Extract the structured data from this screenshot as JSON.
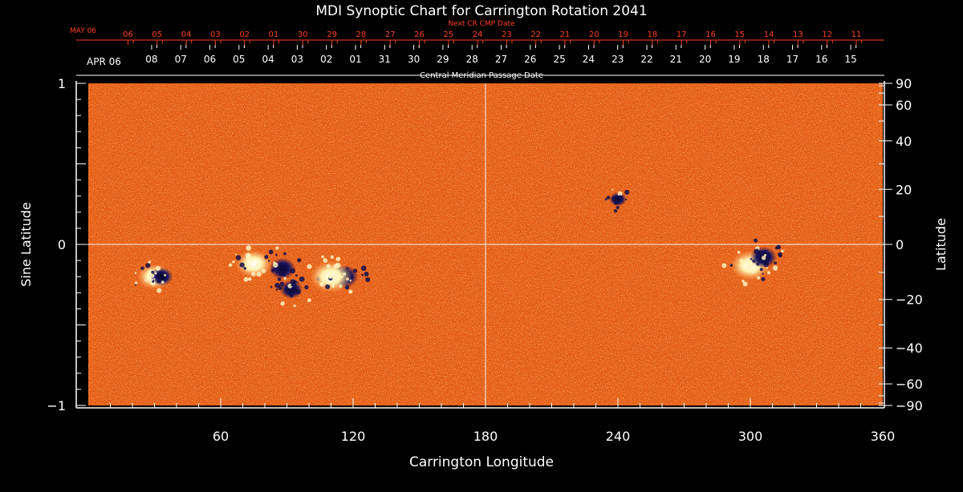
{
  "chart_data": {
    "type": "heatmap",
    "title": "MDI Synoptic Chart for Carrington Rotation 2041",
    "xlabel": "Carrington Longitude",
    "ylabel_left": "Sine Latitude",
    "ylabel_right": "Latitude",
    "xlim": [
      0,
      360
    ],
    "ylim_sine": [
      -1,
      1
    ],
    "x_ticks": [
      {
        "value": 60,
        "label": "60"
      },
      {
        "value": 120,
        "label": "120"
      },
      {
        "value": 180,
        "label": "180"
      },
      {
        "value": 240,
        "label": "240"
      },
      {
        "value": 300,
        "label": "300"
      },
      {
        "value": 360,
        "label": "360"
      }
    ],
    "y_ticks_left": [
      {
        "value": 1,
        "label": "1"
      },
      {
        "value": 0,
        "label": "0"
      },
      {
        "value": -1,
        "label": "−1"
      }
    ],
    "y_ticks_right": [
      {
        "value": 90,
        "label": "90"
      },
      {
        "value": 60,
        "label": "60"
      },
      {
        "value": 40,
        "label": "40"
      },
      {
        "value": 20,
        "label": "20"
      },
      {
        "value": 0,
        "label": "0"
      },
      {
        "value": -20,
        "label": "−20"
      },
      {
        "value": -40,
        "label": "−40"
      },
      {
        "value": -60,
        "label": "−60"
      },
      {
        "value": -90,
        "label": "−90"
      }
    ],
    "cmp_axis_label": "Central Meridian Passage Date",
    "cmp_dates": {
      "month_label": "APR 06",
      "labels": [
        "15",
        "16",
        "17",
        "18",
        "19",
        "20",
        "21",
        "22",
        "23",
        "24",
        "25",
        "26",
        "27",
        "28",
        "29",
        "30",
        "31",
        "01",
        "02",
        "03",
        "04",
        "05",
        "06",
        "07",
        "08"
      ],
      "first_longitude": 345.5,
      "step": -13.2
    },
    "next_cmp_axis_label": "Next CR CMP Date",
    "next_cmp_dates": {
      "month_label": "MAY 06",
      "labels": [
        "11",
        "12",
        "13",
        "14",
        "15",
        "16",
        "17",
        "18",
        "19",
        "20",
        "21",
        "22",
        "23",
        "24",
        "25",
        "26",
        "27",
        "28",
        "29",
        "30",
        "01",
        "02",
        "03",
        "04",
        "05",
        "06"
      ],
      "first_longitude": 348,
      "step": -13.2
    },
    "active_regions": [
      {
        "longitude": 30,
        "sine_latitude": -0.2,
        "polarity": "mixed",
        "strength": 0.7
      },
      {
        "longitude": 75,
        "sine_latitude": -0.12,
        "polarity": "positive",
        "strength": 0.8
      },
      {
        "longitude": 88,
        "sine_latitude": -0.15,
        "polarity": "negative",
        "strength": 0.9
      },
      {
        "longitude": 92,
        "sine_latitude": -0.28,
        "polarity": "negative",
        "strength": 0.7
      },
      {
        "longitude": 116,
        "sine_latitude": -0.2,
        "polarity": "negative",
        "strength": 1.0
      },
      {
        "longitude": 110,
        "sine_latitude": -0.2,
        "polarity": "positive",
        "strength": 1.0
      },
      {
        "longitude": 300,
        "sine_latitude": -0.13,
        "polarity": "positive",
        "strength": 0.9
      },
      {
        "longitude": 306,
        "sine_latitude": -0.08,
        "polarity": "negative",
        "strength": 0.9
      },
      {
        "longitude": 240,
        "sine_latitude": 0.28,
        "polarity": "negative",
        "strength": 0.4
      }
    ],
    "colors": {
      "background_field": "#e85a10",
      "positive_flux": "#fff6c8",
      "negative_flux": "#140f4a",
      "axis": "#ffffff",
      "next_cmp_text": "#ff4020"
    }
  }
}
